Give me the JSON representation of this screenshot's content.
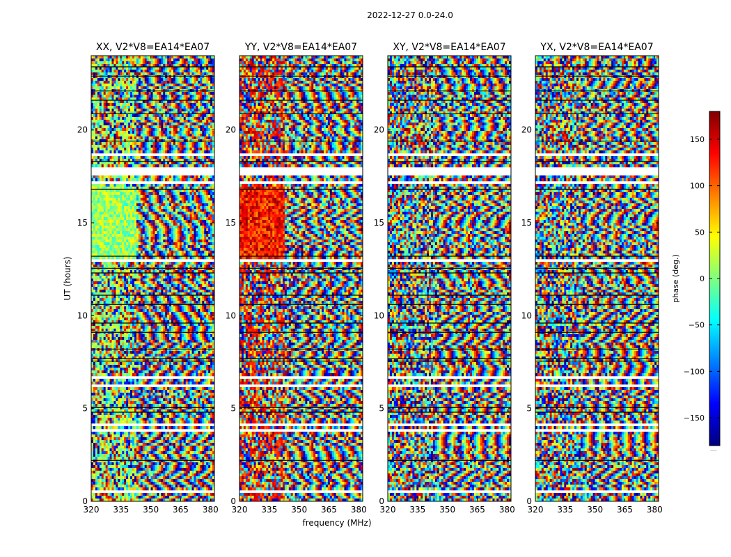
{
  "chart_data": {
    "type": "heatmap",
    "suptitle": "2022-12-27 0.0-24.0",
    "xlabel": "frequency (MHz)",
    "ylabel": "UT (hours)",
    "xlim": [
      320,
      382
    ],
    "ylim": [
      0,
      24
    ],
    "x_ticks": [
      320,
      335,
      350,
      365,
      380
    ],
    "y_ticks": [
      0,
      5,
      10,
      15,
      20
    ],
    "panels": [
      {
        "title": "XX, V2*V8=EA14*EA07",
        "coherent_phase": 10
      },
      {
        "title": "YY, V2*V8=EA14*EA07",
        "coherent_phase": 130
      },
      {
        "title": "XY, V2*V8=EA14*EA07",
        "coherent_phase": null
      },
      {
        "title": "YX, V2*V8=EA14*EA07",
        "coherent_phase": null
      }
    ],
    "fringe_onset_mhz": 343,
    "gap_bands_hours": [
      [
        0.45,
        0.55
      ],
      [
        1.45,
        1.55
      ],
      [
        3.75,
        3.95
      ],
      [
        4.1,
        4.2
      ],
      [
        6.2,
        6.35
      ],
      [
        6.55,
        6.8
      ],
      [
        12.85,
        13.0
      ],
      [
        17.05,
        17.2
      ],
      [
        17.6,
        18.0
      ],
      [
        18.55,
        18.75
      ],
      [
        20.05,
        20.15
      ]
    ],
    "flagged_lines_hours": [
      2.2,
      4.8,
      5.05,
      7.55,
      7.7,
      8.2,
      9.1,
      9.6,
      10.6,
      11.1,
      12.3,
      12.55,
      13.2,
      16.8,
      18.3,
      19.4,
      20.9,
      21.6,
      22.1,
      22.9,
      23.4
    ],
    "colorbar": {
      "label": "phase (deg.)",
      "min": -180,
      "max": 180,
      "ticks": [
        150,
        100,
        50,
        0,
        -50,
        -100,
        -150
      ],
      "tick_labels": [
        "150",
        "100",
        "50",
        "0",
        "−50",
        "−100",
        "−150"
      ]
    },
    "colorbar_footer": "....."
  }
}
